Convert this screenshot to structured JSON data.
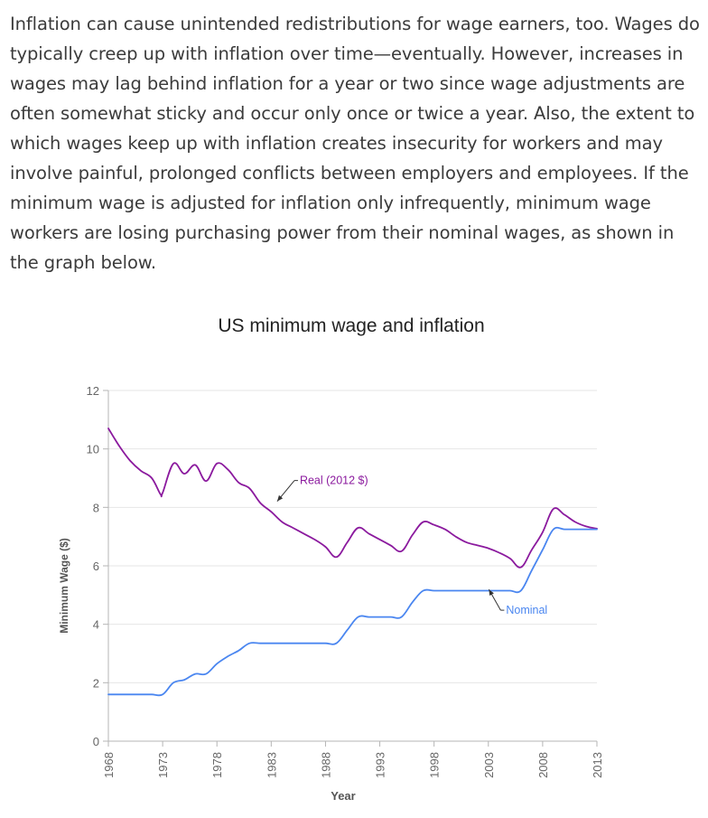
{
  "paragraph": "Inflation can cause unintended redistributions for wage earners, too. Wages do typically creep up with inflation over time—eventually. However, increases in wages may lag behind inflation for a year or two since wage adjustments are often somewhat sticky and occur only once or twice a year. Also, the extent to which wages keep up with inflation creates insecurity for workers and may involve painful, prolonged conflicts between employers and employees. If the minimum wage is adjusted for inflation only infrequently, minimum wage workers are losing purchasing power from their nominal wages, as shown in the graph below.",
  "chart_data": {
    "type": "line",
    "title": "US minimum wage and inflation",
    "xlabel": "Year",
    "ylabel": "Minimum Wage ($)",
    "xlim": [
      1968,
      2013
    ],
    "ylim": [
      0,
      12
    ],
    "x_ticks": [
      "1968",
      "1973",
      "1978",
      "1983",
      "1988",
      "1993",
      "1998",
      "2003",
      "2008",
      "2013"
    ],
    "y_ticks": [
      "0",
      "2",
      "4",
      "6",
      "8",
      "10",
      "12"
    ],
    "grid": true,
    "colors": {
      "real": "#8b1a9e",
      "nominal": "#4a86f0",
      "grid": "#e6e6e6",
      "axis": "#b5b5b5",
      "text": "#666666"
    },
    "series": [
      {
        "name": "Real (2012 $)",
        "key": "real",
        "x": [
          1968,
          1969,
          1970,
          1971,
          1972,
          1972.8,
          1973,
          1974,
          1975,
          1976,
          1977,
          1978,
          1979,
          1980,
          1981,
          1982,
          1983,
          1984,
          1985,
          1986,
          1987,
          1988,
          1989,
          1990,
          1991,
          1992,
          1993,
          1994,
          1995,
          1996,
          1997,
          1998,
          1999,
          2000,
          2001,
          2002,
          2003,
          2004,
          2005,
          2006,
          2007,
          2008,
          2009,
          2010,
          2011,
          2012,
          2013
        ],
        "values": [
          10.7,
          10.1,
          9.6,
          9.25,
          9.0,
          8.45,
          8.5,
          9.5,
          9.15,
          9.45,
          8.9,
          9.5,
          9.3,
          8.85,
          8.65,
          8.15,
          7.85,
          7.5,
          7.3,
          7.1,
          6.9,
          6.65,
          6.3,
          6.8,
          7.3,
          7.1,
          6.9,
          6.7,
          6.5,
          7.05,
          7.5,
          7.4,
          7.25,
          7.0,
          6.8,
          6.7,
          6.6,
          6.45,
          6.25,
          5.95,
          6.55,
          7.15,
          7.95,
          7.75,
          7.5,
          7.35,
          7.27
        ]
      },
      {
        "name": "Nominal",
        "key": "nominal",
        "x": [
          1968,
          1969,
          1970,
          1971,
          1972,
          1973,
          1974,
          1975,
          1976,
          1977,
          1978,
          1979,
          1980,
          1981,
          1982,
          1983,
          1984,
          1985,
          1986,
          1987,
          1988,
          1989,
          1990,
          1991,
          1992,
          1993,
          1994,
          1995,
          1996,
          1997,
          1998,
          1999,
          2000,
          2001,
          2002,
          2003,
          2004,
          2005,
          2006,
          2007,
          2008,
          2009,
          2010,
          2011,
          2012,
          2013
        ],
        "values": [
          1.6,
          1.6,
          1.6,
          1.6,
          1.6,
          1.6,
          2.0,
          2.1,
          2.3,
          2.3,
          2.65,
          2.9,
          3.1,
          3.35,
          3.35,
          3.35,
          3.35,
          3.35,
          3.35,
          3.35,
          3.35,
          3.35,
          3.8,
          4.25,
          4.25,
          4.25,
          4.25,
          4.25,
          4.75,
          5.15,
          5.15,
          5.15,
          5.15,
          5.15,
          5.15,
          5.15,
          5.15,
          5.15,
          5.15,
          5.85,
          6.55,
          7.25,
          7.25,
          7.25,
          7.25,
          7.25
        ]
      }
    ],
    "annotations": [
      {
        "text": "Real (2012 $)",
        "series": "real",
        "x": 1983.3,
        "y": 8.3
      },
      {
        "text": "Nominal",
        "series": "nominal",
        "x": 2002.8,
        "y": 5.1
      }
    ]
  }
}
